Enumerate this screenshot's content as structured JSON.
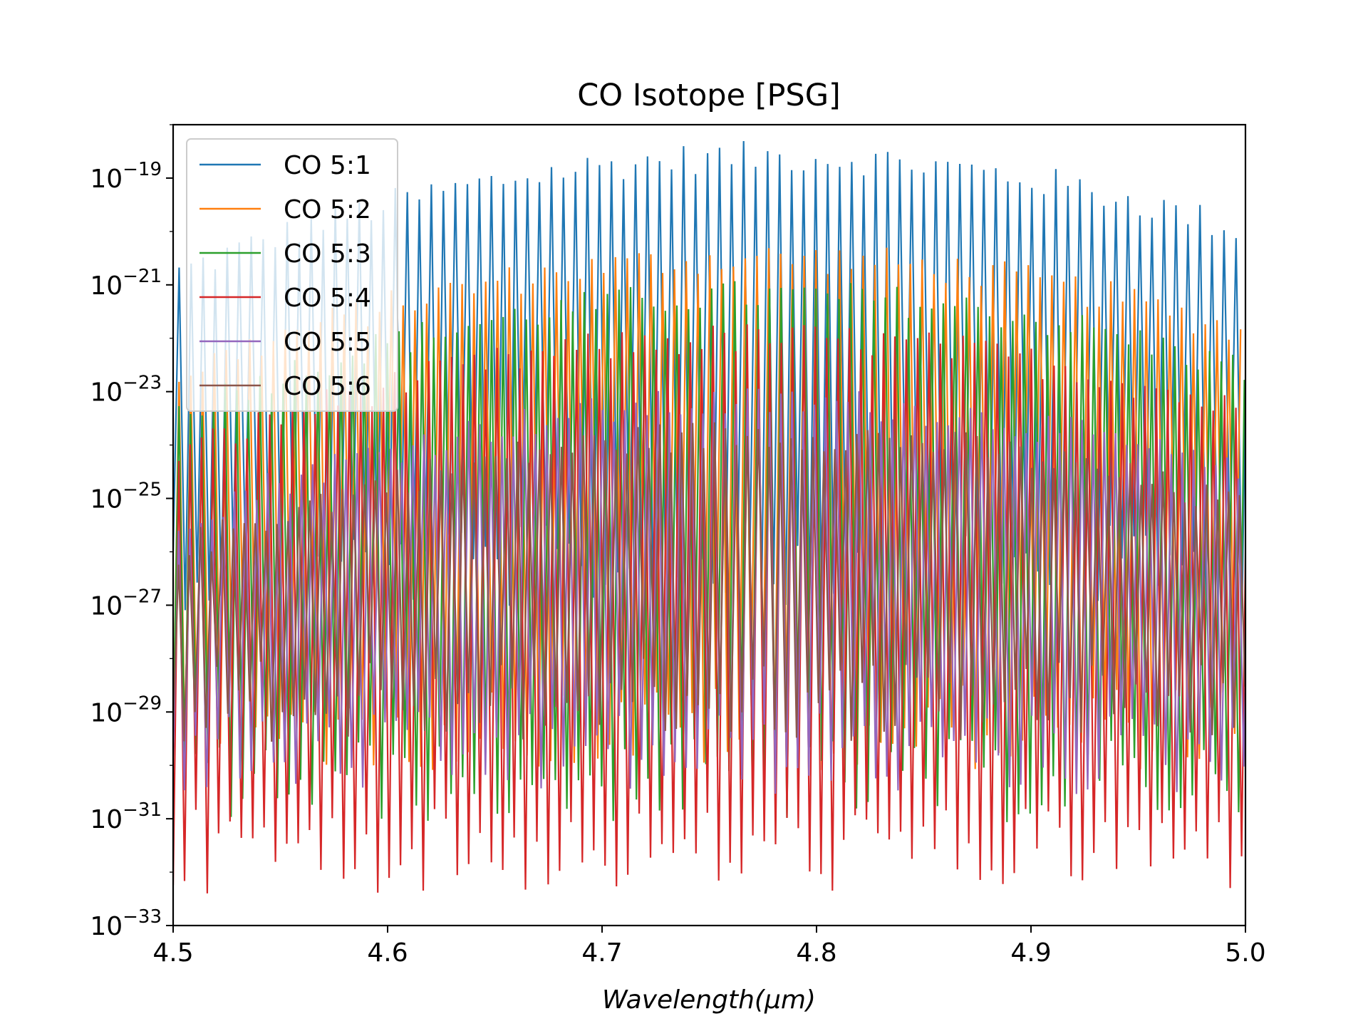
{
  "chart_data": {
    "type": "line",
    "title": "CO Isotope [PSG]",
    "xlabel": "Wavelength(μm)",
    "ylabel": "",
    "xscale": "linear",
    "yscale": "log",
    "xlim": [
      4.5,
      5.0
    ],
    "ylim": [
      1e-33,
      1e-18
    ],
    "xticks": [
      4.5,
      4.6,
      4.7,
      4.8,
      4.9,
      5.0
    ],
    "xtick_labels": [
      "4.5",
      "4.6",
      "4.7",
      "4.8",
      "4.9",
      "5.0"
    ],
    "ytick_exponents": [
      -33,
      -31,
      -29,
      -27,
      -25,
      -23,
      -21,
      -19
    ],
    "ytick_base": "10",
    "legend_position": "top-left",
    "grid": false,
    "series": [
      {
        "name": "CO 5:1",
        "color": "#1f77b4",
        "band_start": 4.5,
        "band_end": 5.0,
        "peak_log": -18.6,
        "spacing": 0.0056,
        "trough_log": -25.5
      },
      {
        "name": "CO 5:2",
        "color": "#ff7f0e",
        "band_start": 4.5,
        "band_end": 5.0,
        "peak_log": -20.5,
        "spacing": 0.0055,
        "trough_log": -28.5
      },
      {
        "name": "CO 5:3",
        "color": "#2ca02c",
        "band_start": 4.5,
        "band_end": 5.0,
        "peak_log": -21.2,
        "spacing": 0.0054,
        "trough_log": -29.5
      },
      {
        "name": "CO 5:4",
        "color": "#d62728",
        "band_start": 4.5,
        "band_end": 5.0,
        "peak_log": -22.0,
        "spacing": 0.0053,
        "trough_log": -30.8
      },
      {
        "name": "CO 5:5",
        "color": "#9467bd",
        "band_start": 4.5,
        "band_end": 5.0,
        "peak_log": -23.2,
        "spacing": 0.0052,
        "trough_log": -29.0
      },
      {
        "name": "CO 5:6",
        "color": "#8c564b",
        "band_start": 4.5,
        "band_end": 5.0,
        "peak_log": -23.8,
        "spacing": 0.0051,
        "trough_log": -28.0
      }
    ]
  }
}
